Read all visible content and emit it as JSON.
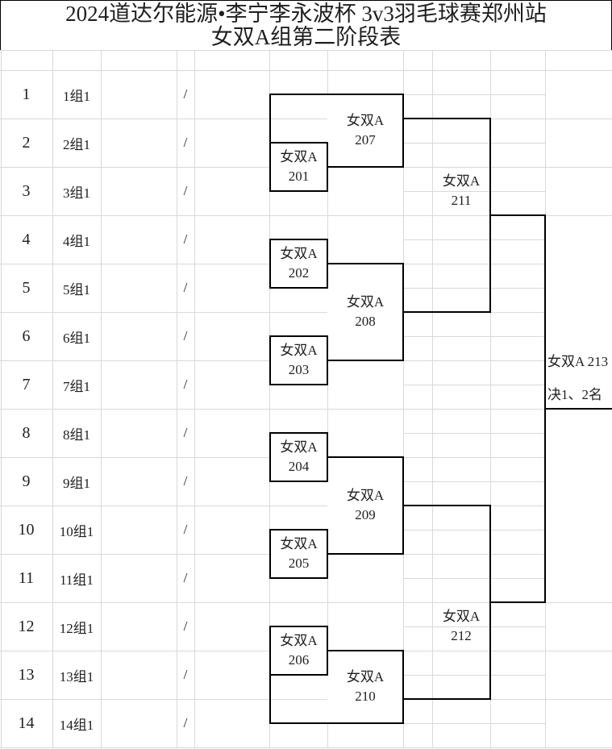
{
  "title": {
    "line1": "2024道达尔能源•李宁李永波杯 3v3羽毛球赛郑州站",
    "line2": "女双A组第二阶段表"
  },
  "table": {
    "entries": [
      {
        "seed": "1",
        "name": "1组1",
        "vs": "/"
      },
      {
        "seed": "2",
        "name": "2组1",
        "vs": "/"
      },
      {
        "seed": "3",
        "name": "3组1",
        "vs": "/"
      },
      {
        "seed": "4",
        "name": "4组1",
        "vs": "/"
      },
      {
        "seed": "5",
        "name": "5组1",
        "vs": "/"
      },
      {
        "seed": "6",
        "name": "6组1",
        "vs": "/"
      },
      {
        "seed": "7",
        "name": "7组1",
        "vs": "/"
      },
      {
        "seed": "8",
        "name": "8组1",
        "vs": "/"
      },
      {
        "seed": "9",
        "name": "9组1",
        "vs": "/"
      },
      {
        "seed": "10",
        "name": "10组1",
        "vs": "/"
      },
      {
        "seed": "11",
        "name": "11组1",
        "vs": "/"
      },
      {
        "seed": "12",
        "name": "12组1",
        "vs": "/"
      },
      {
        "seed": "13",
        "name": "13组1",
        "vs": "/"
      },
      {
        "seed": "14",
        "name": "14组1",
        "vs": "/"
      }
    ]
  },
  "bracket": {
    "group_label": "女双A",
    "matches": [
      {
        "code": "201",
        "label": "女双A"
      },
      {
        "code": "202",
        "label": "女双A"
      },
      {
        "code": "203",
        "label": "女双A"
      },
      {
        "code": "204",
        "label": "女双A"
      },
      {
        "code": "205",
        "label": "女双A"
      },
      {
        "code": "206",
        "label": "女双A"
      },
      {
        "code": "207",
        "label": "女双A"
      },
      {
        "code": "208",
        "label": "女双A"
      },
      {
        "code": "209",
        "label": "女双A"
      },
      {
        "code": "210",
        "label": "女双A"
      },
      {
        "code": "211",
        "label": "女双A"
      },
      {
        "code": "212",
        "label": "女双A"
      }
    ],
    "final": {
      "label": "女双A 213",
      "note": "决1、2名"
    }
  },
  "colors": {
    "background": "#ffffff",
    "grid_line": "#d9d9d9",
    "bracket_line": "#000000",
    "text": "#1f1f1f"
  }
}
